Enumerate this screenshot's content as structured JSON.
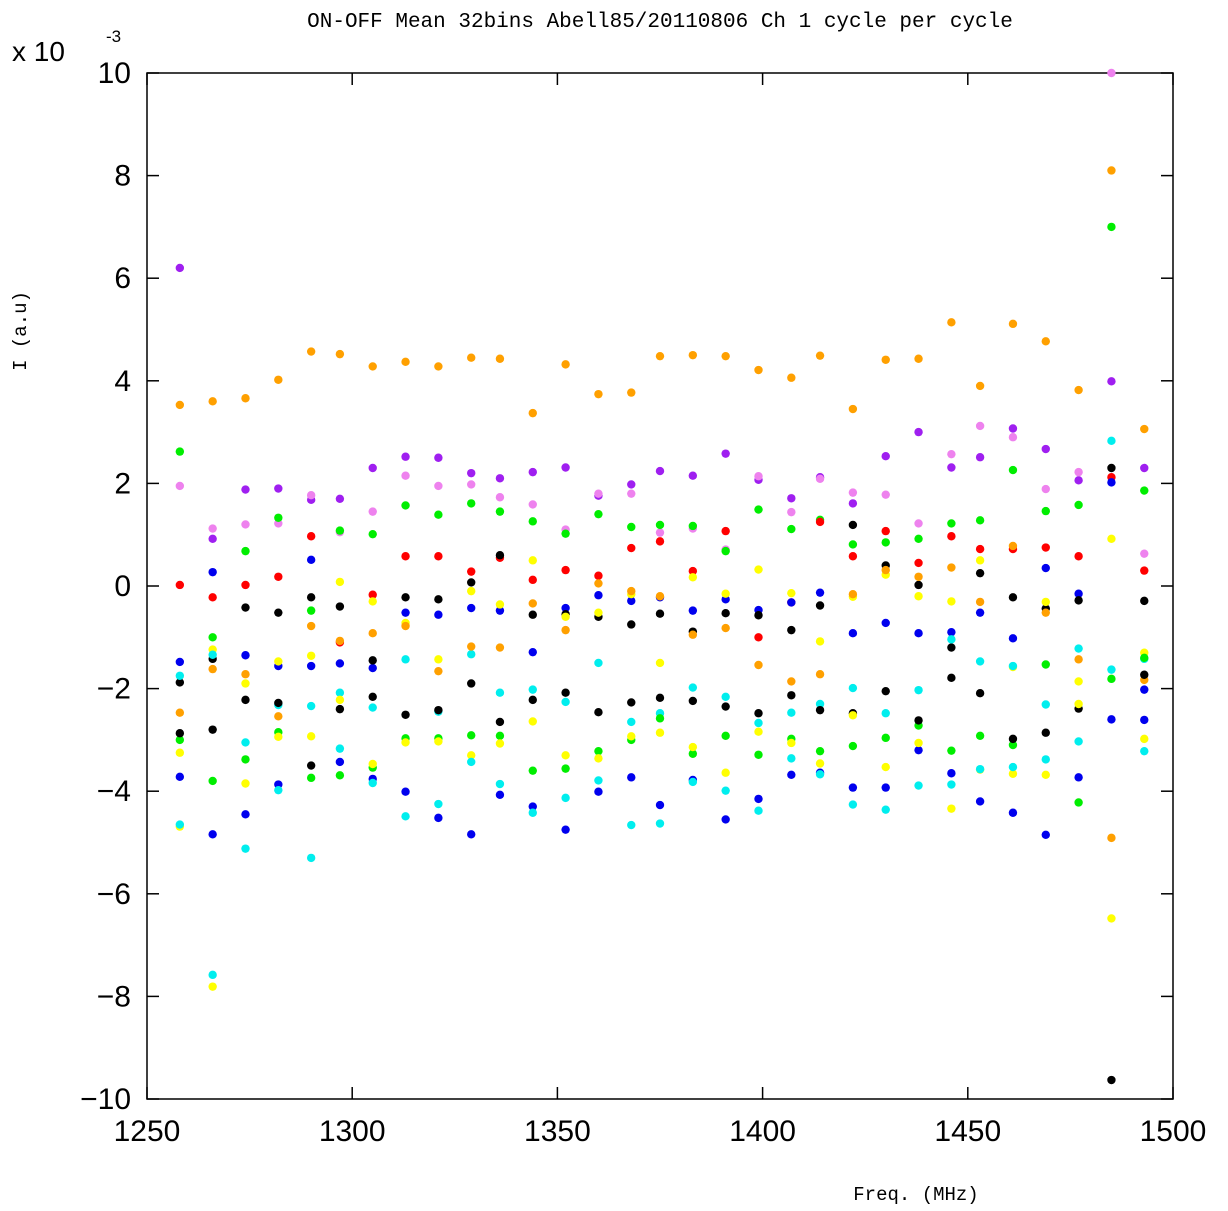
{
  "chart_data": {
    "type": "scatter",
    "title": "ON-OFF Mean 32bins Abell85/20110806 Ch 1 cycle per cycle",
    "xlabel": "Freq. (MHz)",
    "ylabel": "I (a.u)",
    "yscale_label": "x 10",
    "yscale_exponent": "-3",
    "xlim": [
      1250,
      1500
    ],
    "ylim": [
      -10,
      10
    ],
    "xticks": [
      1250,
      1300,
      1350,
      1400,
      1450,
      1500
    ],
    "yticks": [
      -10,
      -8,
      -6,
      -4,
      -2,
      0,
      2,
      4,
      6,
      8,
      10
    ],
    "xtick_labels": [
      "1250",
      "1300",
      "1350",
      "1400",
      "1450",
      "1500"
    ],
    "ytick_labels": [
      "−10",
      "−8",
      "−6",
      "−4",
      "−2",
      "0",
      "2",
      "4",
      "6",
      "8",
      "10"
    ],
    "grid": false,
    "x": [
      1258,
      1266,
      1274,
      1282,
      1290,
      1297,
      1305,
      1313,
      1321,
      1329,
      1336,
      1344,
      1352,
      1360,
      1368,
      1375,
      1383,
      1391,
      1399,
      1407,
      1414,
      1422,
      1430,
      1438,
      1446,
      1453,
      1461,
      1469,
      1477,
      1485,
      1493
    ],
    "series": [
      {
        "color": "#ffa000",
        "values": [
          3.53,
          3.6,
          3.66,
          4.02,
          4.57,
          4.52,
          4.28,
          4.37,
          4.28,
          4.45,
          4.43,
          3.37,
          4.32,
          3.74,
          3.77,
          4.48,
          4.5,
          4.48,
          4.21,
          4.06,
          4.49,
          3.45,
          4.41,
          4.43,
          5.14,
          3.9,
          5.11,
          4.77,
          3.82,
          8.1,
          3.06
        ]
      },
      {
        "color": "#9f1ff0",
        "values": [
          6.2,
          0.92,
          1.88,
          1.9,
          1.68,
          1.7,
          2.3,
          2.52,
          2.5,
          2.2,
          2.1,
          2.22,
          2.31,
          1.76,
          1.98,
          2.24,
          2.15,
          2.58,
          2.07,
          1.71,
          2.12,
          1.61,
          2.53,
          3.0,
          2.31,
          2.51,
          3.07,
          2.67,
          2.06,
          3.99,
          2.3
        ]
      },
      {
        "color": "#ee82ee",
        "values": [
          1.95,
          1.12,
          1.2,
          1.22,
          1.77,
          1.05,
          1.45,
          2.15,
          1.95,
          1.98,
          1.73,
          1.59,
          1.1,
          1.8,
          1.8,
          1.04,
          1.12,
          0.71,
          2.14,
          1.44,
          2.09,
          1.82,
          1.78,
          1.22,
          2.57,
          3.12,
          2.9,
          1.89,
          2.22,
          10.0,
          0.63
        ]
      },
      {
        "color": "#00ee00",
        "values": [
          2.62,
          -1.0,
          0.68,
          1.33,
          -0.48,
          1.08,
          1.01,
          1.57,
          1.39,
          1.61,
          1.45,
          1.26,
          1.02,
          1.4,
          1.15,
          1.19,
          1.17,
          0.68,
          1.49,
          1.11,
          1.29,
          0.81,
          0.85,
          0.92,
          1.22,
          1.28,
          2.26,
          1.46,
          1.58,
          7.0,
          1.86
        ]
      },
      {
        "color": "#ff0000",
        "values": [
          0.02,
          -0.22,
          0.02,
          0.18,
          0.97,
          -1.1,
          -0.17,
          0.58,
          0.58,
          0.28,
          0.55,
          0.12,
          0.31,
          0.2,
          0.74,
          0.87,
          0.29,
          1.07,
          -1.0,
          -0.32,
          1.25,
          0.58,
          1.07,
          0.45,
          0.97,
          0.72,
          0.72,
          0.75,
          0.58,
          2.12,
          0.3
        ]
      },
      {
        "color": "#0000ee",
        "values": [
          -1.48,
          0.27,
          -1.35,
          -1.56,
          0.51,
          -1.51,
          -1.6,
          -0.52,
          -0.56,
          -0.43,
          -0.48,
          -1.29,
          -0.43,
          -0.18,
          -0.29,
          -0.22,
          -0.48,
          -0.26,
          -0.47,
          -0.32,
          -0.13,
          -0.92,
          -0.72,
          -0.92,
          -0.9,
          -0.52,
          -1.02,
          0.35,
          -0.15,
          2.02,
          -2.02
        ]
      },
      {
        "color": "#000000",
        "values": [
          -1.88,
          -1.42,
          -0.42,
          -0.52,
          -0.22,
          -0.4,
          -1.45,
          -0.22,
          -0.26,
          0.07,
          0.6,
          -0.56,
          -0.55,
          -0.6,
          -0.75,
          -0.54,
          -0.89,
          -0.53,
          -0.57,
          -0.86,
          -0.38,
          1.19,
          0.4,
          0.02,
          -1.2,
          0.25,
          -0.22,
          -0.44,
          -0.28,
          2.3,
          -0.29
        ]
      },
      {
        "color": "#ffff00",
        "values": [
          -3.25,
          -1.24,
          -1.9,
          -1.47,
          -1.36,
          0.08,
          -0.3,
          -0.72,
          -1.43,
          -0.1,
          -0.36,
          0.5,
          -0.6,
          -0.52,
          -0.16,
          -1.5,
          0.17,
          -0.15,
          0.32,
          -0.14,
          -1.08,
          -0.21,
          0.22,
          -0.2,
          -0.3,
          0.5,
          -1.58,
          -0.31,
          -1.86,
          0.92,
          -1.3
        ]
      },
      {
        "color": "#00eeee",
        "values": [
          -1.75,
          -1.34,
          -3.05,
          -2.32,
          -2.34,
          -2.08,
          -2.37,
          -1.43,
          -2.45,
          -1.33,
          -2.08,
          -2.02,
          -2.26,
          -1.5,
          -2.65,
          -2.48,
          -1.98,
          -2.16,
          -2.67,
          -2.47,
          -2.3,
          -1.99,
          -2.48,
          -2.03,
          -1.04,
          -1.47,
          -1.56,
          -2.31,
          -1.22,
          2.83,
          -1.42
        ]
      },
      {
        "color": "#ffa000",
        "values": [
          -2.47,
          -1.62,
          -1.72,
          -2.54,
          -0.78,
          -1.07,
          -0.92,
          -0.78,
          -1.66,
          -1.18,
          -1.2,
          -0.34,
          -0.86,
          0.05,
          -0.1,
          -0.2,
          -0.95,
          -0.82,
          -1.54,
          -1.86,
          -1.72,
          -0.16,
          0.31,
          0.18,
          0.36,
          -0.31,
          0.78,
          -0.52,
          -1.43,
          -4.91,
          -1.83
        ]
      },
      {
        "color": "#00ee00",
        "values": [
          -3.0,
          -3.8,
          -3.38,
          -2.85,
          -3.74,
          -3.69,
          -3.54,
          -2.97,
          -2.97,
          -2.91,
          -2.92,
          -3.6,
          -3.56,
          -3.22,
          -3.0,
          -2.58,
          -3.27,
          -2.92,
          -3.29,
          -2.98,
          -3.22,
          -3.12,
          -2.96,
          -2.72,
          -3.21,
          -2.92,
          -3.1,
          -1.53,
          -4.22,
          -1.81,
          -1.4
        ]
      },
      {
        "color": "#0000ee",
        "values": [
          -3.72,
          -4.84,
          -4.45,
          -3.87,
          -1.56,
          -3.43,
          -3.76,
          -4.01,
          -4.52,
          -4.84,
          -4.07,
          -4.3,
          -4.75,
          -4.01,
          -3.73,
          -4.27,
          -3.78,
          -4.55,
          -4.15,
          -3.68,
          -3.64,
          -3.93,
          -3.93,
          -3.2,
          -3.65,
          -4.2,
          -4.42,
          -4.85,
          -3.73,
          -2.6,
          -2.61
        ]
      },
      {
        "color": "#000000",
        "values": [
          -2.87,
          -2.8,
          -2.22,
          -2.28,
          -3.5,
          -2.4,
          -2.16,
          -2.51,
          -2.42,
          -1.9,
          -2.65,
          -2.22,
          -2.08,
          -2.46,
          -2.27,
          -2.18,
          -2.24,
          -2.35,
          -2.48,
          -2.13,
          -2.42,
          -2.48,
          -2.05,
          -2.62,
          -1.79,
          -2.09,
          -2.98,
          -2.86,
          -2.39,
          -9.63,
          -1.73
        ]
      },
      {
        "color": "#ffff00",
        "values": [
          -4.69,
          -7.81,
          -3.85,
          -2.94,
          -2.93,
          -2.22,
          -3.47,
          -3.05,
          -3.03,
          -3.3,
          -3.07,
          -2.64,
          -3.3,
          -3.36,
          -2.93,
          -2.86,
          -3.14,
          -3.64,
          -2.84,
          -3.06,
          -3.46,
          -2.52,
          -3.53,
          -3.06,
          -4.34,
          -3.58,
          -3.66,
          -3.68,
          -2.3,
          -6.48,
          -2.98
        ]
      },
      {
        "color": "#00eeee",
        "values": [
          -4.65,
          -7.58,
          -5.12,
          -3.98,
          -5.3,
          -3.17,
          -3.84,
          -4.49,
          -4.25,
          -3.43,
          -3.86,
          -4.42,
          -4.13,
          -3.79,
          -4.66,
          -4.63,
          -3.82,
          -3.99,
          -4.38,
          -3.36,
          -3.67,
          -4.26,
          -4.36,
          -3.89,
          -3.87,
          -3.57,
          -3.53,
          -3.38,
          -3.03,
          -1.63,
          -3.22
        ]
      }
    ]
  }
}
